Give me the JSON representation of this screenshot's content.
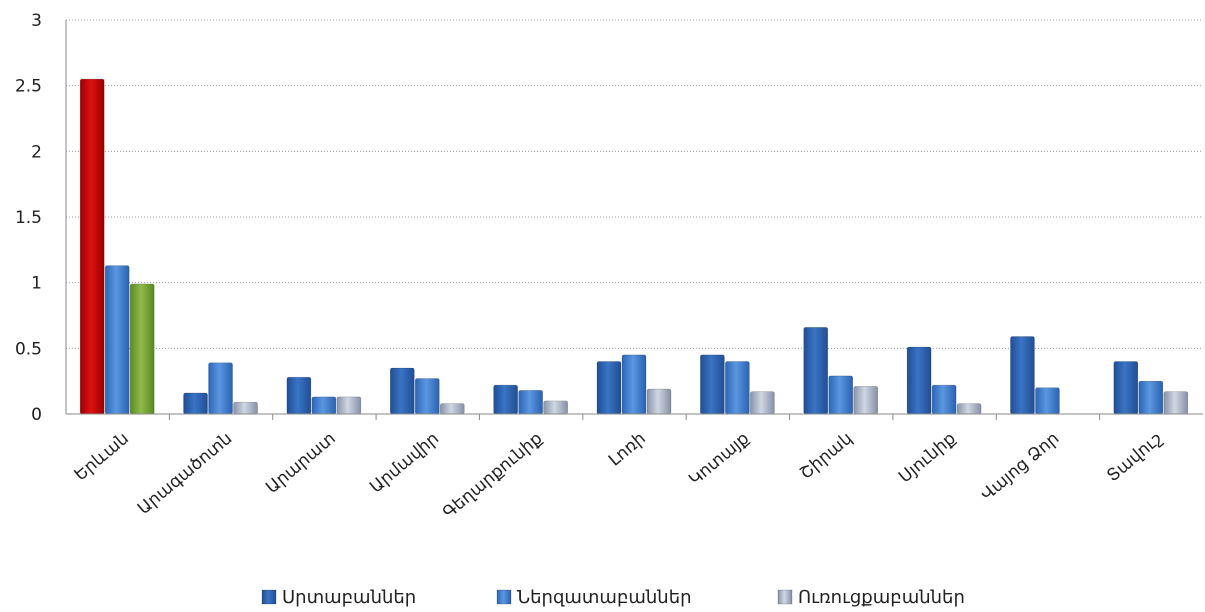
{
  "chart_data": {
    "type": "bar",
    "categories": [
      "Երևան",
      "Արագածոտն",
      "Արարատ",
      "Արմավիր",
      "Գեղարքունիք",
      "Լոռի",
      "Կոտայք",
      "Շիրակ",
      "Սյունիք",
      "Վայոց Ձոր",
      "Տավուշ"
    ],
    "series": [
      {
        "name": "Սրտաբաններ",
        "values": [
          2.55,
          0.16,
          0.28,
          0.35,
          0.22,
          0.4,
          0.45,
          0.66,
          0.51,
          0.59,
          0.4
        ]
      },
      {
        "name": "Ներզատաբաններ",
        "values": [
          1.13,
          0.39,
          0.13,
          0.27,
          0.18,
          0.45,
          0.4,
          0.29,
          0.22,
          0.2,
          0.25
        ]
      },
      {
        "name": "Ուռուցքաբաններ",
        "values": [
          0.99,
          0.09,
          0.13,
          0.08,
          0.1,
          0.19,
          0.17,
          0.21,
          0.08,
          null,
          0.17
        ]
      }
    ],
    "highlight_colors": [
      "#c80000",
      "#3f7fd0",
      "#77a033"
    ],
    "series_colors": [
      "#2f63b0",
      "#3c7ccc",
      "#a9b4c6"
    ],
    "ylim": [
      0,
      3
    ],
    "yticks": [
      "0",
      "0.5",
      "1",
      "1.5",
      "2",
      "2.5",
      "3"
    ],
    "grid": true,
    "legend_position": "bottom",
    "title": "",
    "xlabel": "",
    "ylabel": ""
  }
}
